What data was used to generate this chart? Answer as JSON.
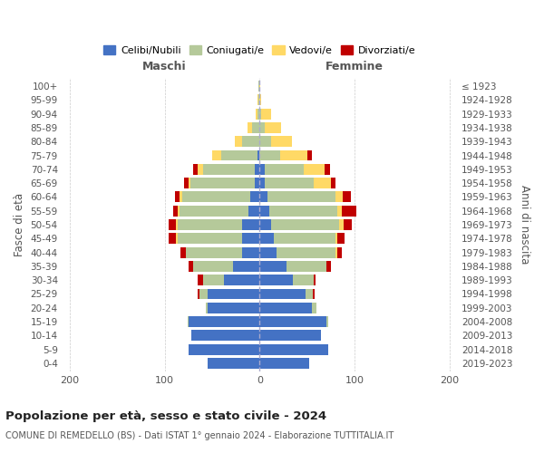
{
  "age_groups": [
    "0-4",
    "5-9",
    "10-14",
    "15-19",
    "20-24",
    "25-29",
    "30-34",
    "35-39",
    "40-44",
    "45-49",
    "50-54",
    "55-59",
    "60-64",
    "65-69",
    "70-74",
    "75-79",
    "80-84",
    "85-89",
    "90-94",
    "95-99",
    "100+"
  ],
  "birth_years": [
    "2019-2023",
    "2014-2018",
    "2009-2013",
    "2004-2008",
    "1999-2003",
    "1994-1998",
    "1989-1993",
    "1984-1988",
    "1979-1983",
    "1974-1978",
    "1969-1973",
    "1964-1968",
    "1959-1963",
    "1954-1958",
    "1949-1953",
    "1944-1948",
    "1939-1943",
    "1934-1938",
    "1929-1933",
    "1924-1928",
    "≤ 1923"
  ],
  "colors": {
    "celibi_nubili": "#4472c4",
    "coniugati": "#b5c99a",
    "vedovi": "#ffd966",
    "divorziati": "#c00000"
  },
  "maschi_celibi": [
    55,
    75,
    72,
    75,
    55,
    55,
    38,
    28,
    18,
    18,
    18,
    12,
    10,
    5,
    5,
    2,
    0,
    0,
    0,
    0,
    0
  ],
  "maschi_coniugati": [
    0,
    0,
    0,
    1,
    2,
    8,
    22,
    42,
    60,
    68,
    68,
    72,
    72,
    68,
    55,
    38,
    18,
    8,
    2,
    1,
    1
  ],
  "maschi_vedovi": [
    0,
    0,
    0,
    0,
    0,
    0,
    0,
    0,
    0,
    2,
    2,
    2,
    2,
    2,
    5,
    10,
    8,
    5,
    2,
    1,
    0
  ],
  "maschi_divorziati": [
    0,
    0,
    0,
    0,
    0,
    2,
    5,
    5,
    5,
    8,
    8,
    5,
    5,
    5,
    5,
    0,
    0,
    0,
    0,
    0,
    0
  ],
  "femmine_nubili": [
    52,
    72,
    65,
    70,
    55,
    48,
    35,
    28,
    18,
    15,
    12,
    10,
    8,
    5,
    5,
    0,
    0,
    0,
    0,
    0,
    0
  ],
  "femmine_coniugate": [
    0,
    0,
    0,
    2,
    5,
    8,
    22,
    42,
    62,
    65,
    72,
    72,
    72,
    52,
    42,
    22,
    12,
    5,
    2,
    0,
    0
  ],
  "femmine_vedove": [
    0,
    0,
    0,
    0,
    0,
    0,
    0,
    0,
    2,
    2,
    5,
    5,
    8,
    18,
    22,
    28,
    22,
    18,
    10,
    2,
    1
  ],
  "femmine_divorziate": [
    0,
    0,
    0,
    0,
    0,
    2,
    2,
    5,
    5,
    8,
    8,
    15,
    8,
    5,
    5,
    5,
    0,
    0,
    0,
    0,
    0
  ],
  "xlim": 210,
  "xticks": [
    -200,
    -100,
    0,
    100,
    200
  ],
  "xticklabels": [
    "200",
    "100",
    "0",
    "100",
    "200"
  ],
  "title": "Popolazione per età, sesso e stato civile - 2024",
  "subtitle": "COMUNE DI REMEDELLO (BS) - Dati ISTAT 1° gennaio 2024 - Elaborazione TUTTITALIA.IT",
  "ylabel_left": "Fasce di età",
  "ylabel_right": "Anni di nascita",
  "header_maschi": "Maschi",
  "header_femmine": "Femmine",
  "legend": [
    "Celibi/Nubili",
    "Coniugati/e",
    "Vedovi/e",
    "Divorziati/e"
  ],
  "bg_color": "#ffffff",
  "grid_color": "#cccccc",
  "spine_color": "#cccccc",
  "text_color": "#555555",
  "title_color": "#222222",
  "bar_height": 0.78,
  "center_line_color": "#aaaacc",
  "figsize": [
    6.0,
    5.0
  ],
  "dpi": 100
}
